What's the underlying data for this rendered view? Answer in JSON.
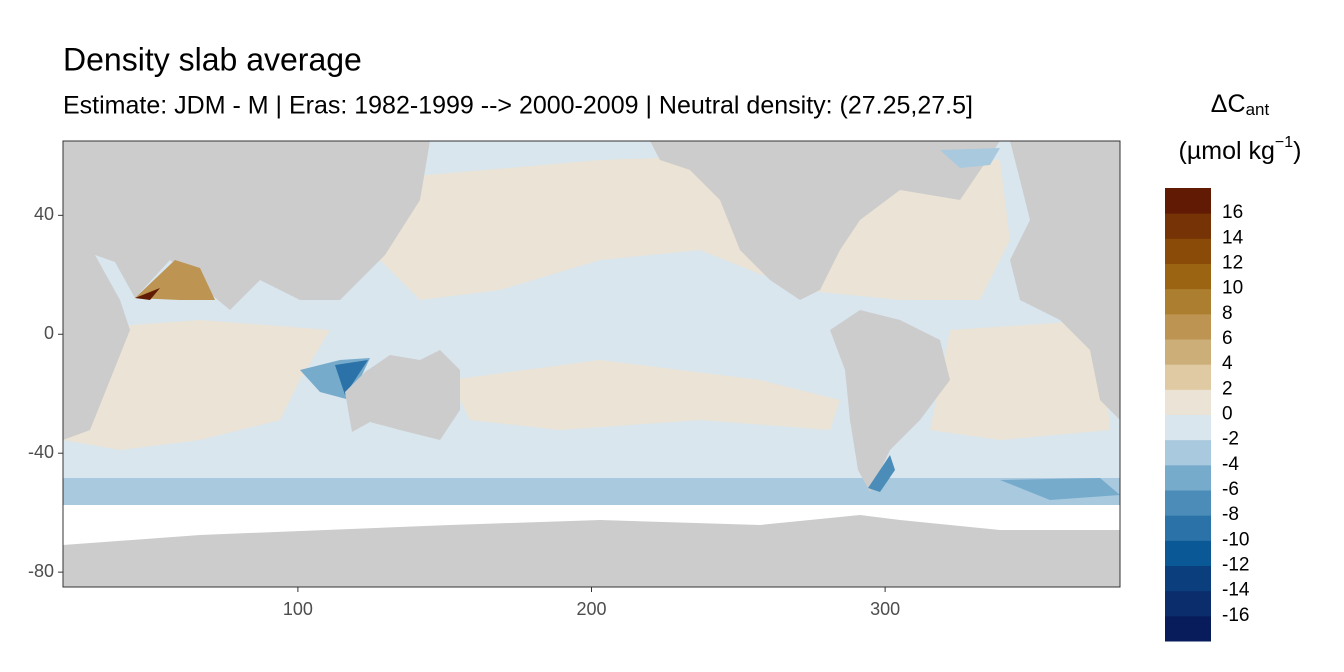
{
  "chart_data": {
    "type": "map",
    "title": "Density slab average",
    "subtitle": "Estimate: JDM - M | Eras: 1982-1999 --> 2000-2009 | Neutral density: (27.25,27.5]",
    "xlim": [
      20,
      380
    ],
    "ylim": [
      -85,
      65
    ],
    "xticks": [
      100,
      200,
      300
    ],
    "yticks": [
      40,
      0,
      -40,
      -80
    ],
    "grid": true,
    "colorbar": {
      "title": {
        "main": "ΔC",
        "sub": "ant",
        "unit": "(µmol kg",
        "unit_sup": "−1",
        "unit_end": ")"
      },
      "limits": [
        -18,
        18
      ],
      "ticks": [
        16,
        14,
        12,
        10,
        8,
        6,
        4,
        2,
        0,
        -2,
        -4,
        -6,
        -8,
        -10,
        -12,
        -14,
        -16
      ],
      "colors": [
        "#081c5c",
        "#0b2d6b",
        "#0a3e7d",
        "#0b5896",
        "#2b72a8",
        "#4b8db8",
        "#77abcc",
        "#a8c9de",
        "#d9e6ee",
        "#ebe3d5",
        "#dfcaa3",
        "#ccaf78",
        "#bd9451",
        "#ac7e2f",
        "#9b6412",
        "#8a4b08",
        "#763406",
        "#611a03"
      ]
    }
  }
}
